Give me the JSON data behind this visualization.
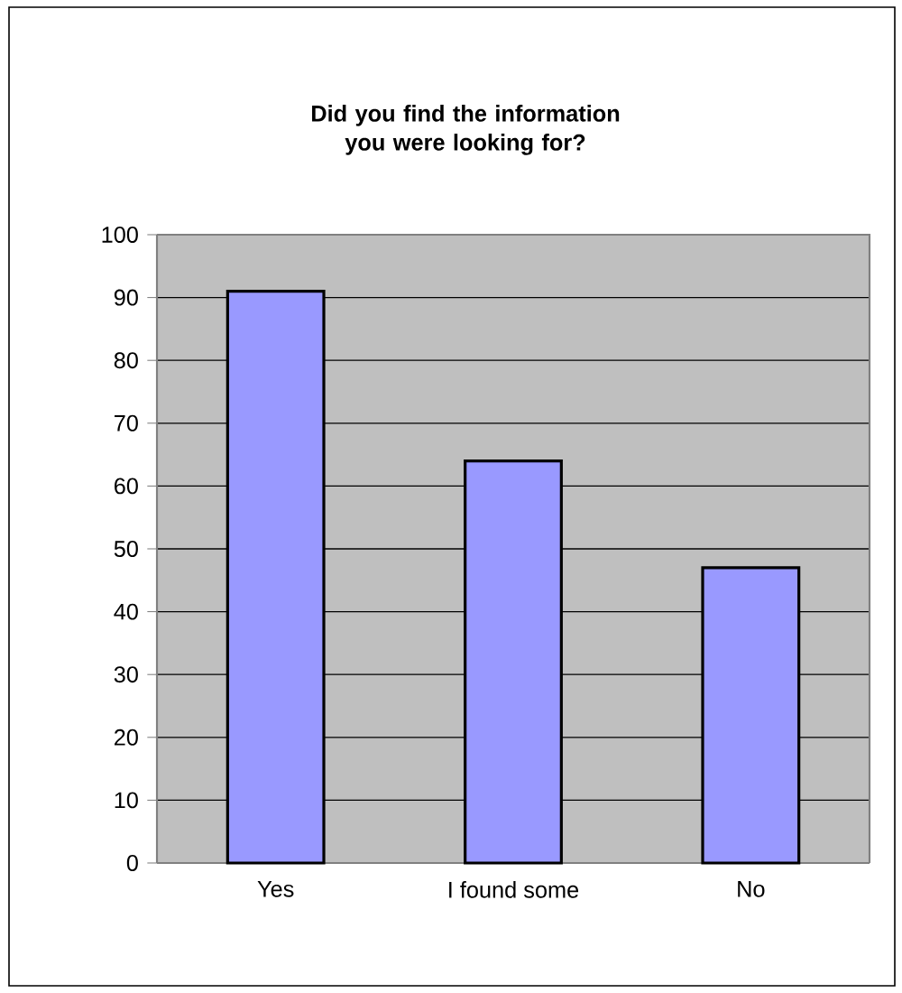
{
  "chart_data": {
    "type": "bar",
    "title": "Did you find the information you were looking for?",
    "categories": [
      "Yes",
      "I found some",
      "No"
    ],
    "values": [
      91,
      64,
      47
    ],
    "color": "#9999ff",
    "ylim": [
      0,
      100
    ],
    "yticks": [
      0,
      10,
      20,
      30,
      40,
      50,
      60,
      70,
      80,
      90,
      100
    ],
    "grid": "y"
  }
}
